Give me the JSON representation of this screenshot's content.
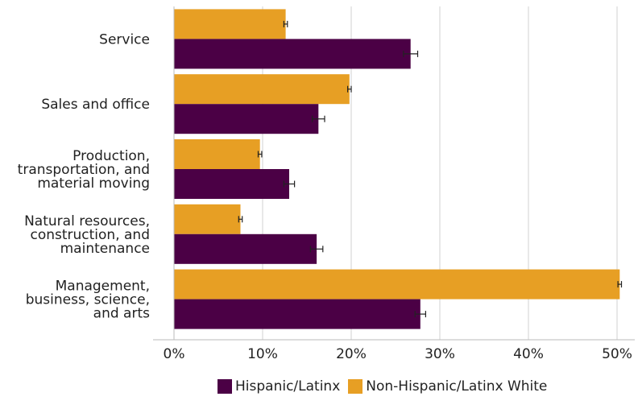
{
  "chart_data": {
    "type": "bar",
    "orientation": "horizontal",
    "categories": [
      "Service",
      "Sales and office",
      "Production, transportation, and material moving",
      "Natural resources, construction, and maintenance",
      "Management, business, science, and arts"
    ],
    "category_label_lines": [
      [
        "Service"
      ],
      [
        "Sales and office"
      ],
      [
        "Production,",
        "transportation, and",
        "material moving"
      ],
      [
        "Natural resources,",
        "construction, and",
        "maintenance"
      ],
      [
        "Management,",
        "business, science,",
        "and arts"
      ]
    ],
    "series": [
      {
        "name": "Hispanic/Latinx",
        "color": "#4b0045",
        "values": [
          26.7,
          16.3,
          13.0,
          16.1,
          27.8
        ],
        "errors": [
          0.8,
          0.7,
          0.6,
          0.7,
          0.6
        ]
      },
      {
        "name": "Non-Hispanic/Latinx White",
        "color": "#e79f24",
        "values": [
          12.6,
          19.8,
          9.7,
          7.5,
          50.3
        ],
        "errors": [
          0.2,
          0.2,
          0.2,
          0.2,
          0.2
        ]
      }
    ],
    "xlim": [
      0,
      52
    ],
    "xticks": [
      0,
      10,
      20,
      30,
      40,
      50
    ],
    "xtick_labels": [
      "0%",
      "10%",
      "20%",
      "30%",
      "40%",
      "50%"
    ],
    "grid": true,
    "legend_position": "bottom",
    "title": "",
    "xlabel": "",
    "ylabel": ""
  }
}
